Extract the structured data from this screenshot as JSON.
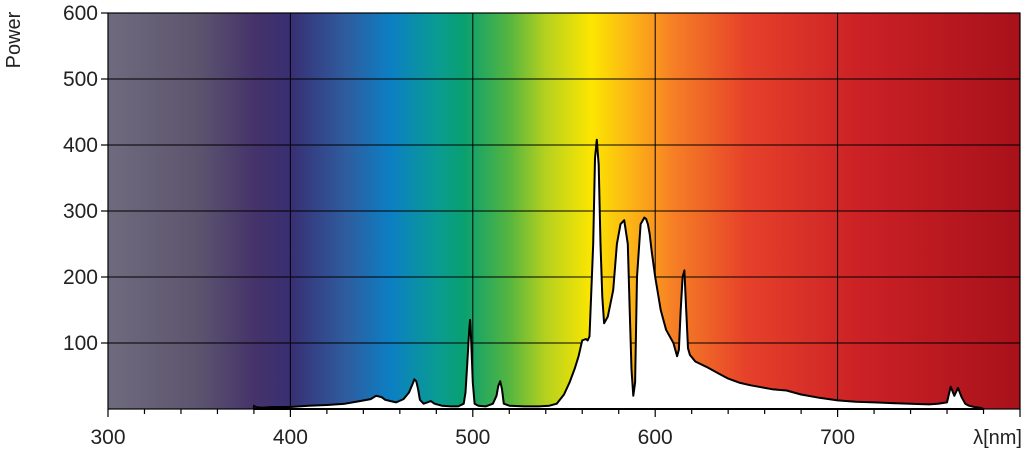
{
  "chart_data": {
    "type": "area",
    "title": "",
    "xlabel": "λ[nm]",
    "ylabel": "Power",
    "xlim": [
      300,
      800
    ],
    "ylim": [
      0,
      600
    ],
    "grid": true,
    "x_ticks": [
      300,
      400,
      500,
      600,
      700
    ],
    "y_ticks": [
      100,
      200,
      300,
      400,
      500,
      600
    ],
    "x_tick_labels": [
      "300",
      "400",
      "500",
      "600",
      "700"
    ],
    "y_tick_labels": [
      "100",
      "200",
      "300",
      "400",
      "500",
      "600"
    ],
    "background": "visible-spectrum gradient",
    "colors": {
      "fill": "#ffffff",
      "stroke": "#000000",
      "grid": "#000000"
    },
    "series": [
      {
        "x": [
          380,
          381,
          384,
          390,
          400,
          410,
          420,
          430,
          438,
          444,
          447,
          450,
          452,
          455,
          458,
          462,
          465,
          467,
          468,
          469,
          470,
          471,
          473,
          475,
          477,
          479,
          483,
          488,
          492,
          495,
          496,
          497,
          498,
          498.5,
          499,
          500,
          501,
          503,
          507,
          511,
          513,
          514,
          515,
          516,
          517,
          520,
          528,
          536,
          542,
          546,
          550,
          553,
          556,
          558,
          560,
          562,
          563,
          564,
          566,
          567,
          568,
          569,
          570,
          571,
          572,
          574,
          577,
          579,
          581,
          583,
          585,
          586,
          587,
          588,
          589,
          590,
          592,
          594,
          595,
          596,
          597,
          598,
          600,
          603,
          606,
          610,
          612,
          613,
          614,
          615,
          616,
          617,
          618,
          619,
          622,
          628,
          634,
          640,
          646,
          652,
          658,
          664,
          672,
          680,
          690,
          700,
          710,
          720,
          730,
          740,
          750,
          755,
          760,
          762,
          764,
          766,
          768,
          770,
          772,
          775,
          778,
          780
        ],
        "y": [
          5,
          3,
          2,
          3,
          3,
          5,
          6,
          8,
          12,
          15,
          20,
          18,
          14,
          12,
          10,
          15,
          25,
          38,
          45,
          42,
          30,
          14,
          8,
          10,
          12,
          8,
          5,
          4,
          4,
          8,
          25,
          70,
          120,
          135,
          110,
          40,
          8,
          5,
          4,
          8,
          20,
          35,
          42,
          30,
          8,
          5,
          4,
          4,
          5,
          8,
          22,
          40,
          62,
          80,
          104,
          106,
          104,
          110,
          250,
          380,
          408,
          370,
          250,
          170,
          130,
          140,
          180,
          250,
          280,
          286,
          250,
          150,
          60,
          20,
          40,
          200,
          280,
          290,
          288,
          280,
          265,
          240,
          200,
          150,
          120,
          100,
          80,
          90,
          150,
          200,
          210,
          150,
          92,
          82,
          72,
          64,
          55,
          46,
          40,
          36,
          33,
          30,
          28,
          22,
          17,
          13,
          11,
          10,
          9,
          8,
          7,
          8,
          10,
          34,
          20,
          32,
          18,
          8,
          5,
          3,
          2,
          0
        ]
      }
    ]
  }
}
